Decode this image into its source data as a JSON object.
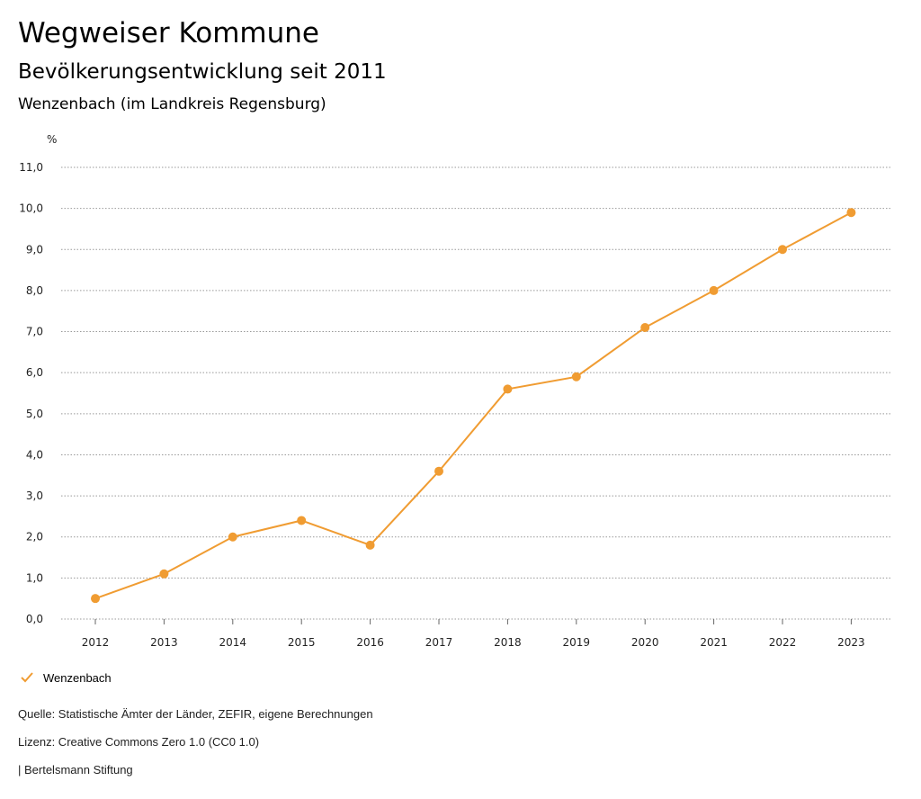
{
  "header": {
    "title": "Wegweiser Kommune",
    "subtitle": "Bevölkerungsentwicklung seit 2011",
    "region": "Wenzenbach (im Landkreis Regensburg)"
  },
  "colors": {
    "series": "#f09c32",
    "grid": "#999999"
  },
  "chart_data": {
    "type": "line",
    "yunit": "%",
    "x": [
      "2012",
      "2013",
      "2014",
      "2015",
      "2016",
      "2017",
      "2018",
      "2019",
      "2020",
      "2021",
      "2022",
      "2023"
    ],
    "series": [
      {
        "name": "Wenzenbach",
        "values": [
          0.5,
          1.1,
          2.0,
          2.4,
          1.8,
          3.6,
          5.6,
          5.9,
          7.1,
          8.0,
          9.0,
          9.9
        ]
      }
    ],
    "yticks": [
      "0,0",
      "1,0",
      "2,0",
      "3,0",
      "4,0",
      "5,0",
      "6,0",
      "7,0",
      "8,0",
      "9,0",
      "10,0",
      "11,0"
    ],
    "ylim": [
      0,
      11
    ],
    "grid": true,
    "legend_position": "bottom-left"
  },
  "legend": {
    "label": "Wenzenbach",
    "icon": "check-icon"
  },
  "footer": {
    "source": "Quelle: Statistische Ämter der Länder, ZEFIR, eigene Berechnungen",
    "license": "Lizenz: Creative Commons Zero 1.0 (CC0 1.0)",
    "publisher": "| Bertelsmann Stiftung"
  }
}
